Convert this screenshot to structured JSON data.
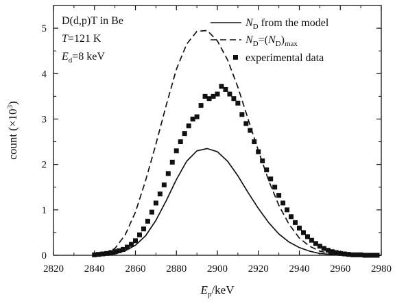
{
  "chart_data": {
    "type": "line",
    "annotations": {
      "reaction": "D(d,p)T in Be",
      "temperature": {
        "symbol": "T",
        "rest": "=121 K"
      },
      "energy": {
        "symbol": "E",
        "sub": "d",
        "rest": "=8 keV"
      }
    },
    "xlabel": {
      "symbol": "E",
      "sub": "p",
      "rest": "/keV"
    },
    "ylabel": {
      "main": "count",
      "unit_open": "(×10",
      "exp": "3",
      "unit_close": ")"
    },
    "xlim": [
      2820,
      2980
    ],
    "ylim": [
      0,
      5.5
    ],
    "x_ticks": [
      2820,
      2840,
      2860,
      2880,
      2900,
      2920,
      2940,
      2960,
      2980
    ],
    "y_ticks": [
      0,
      1,
      2,
      3,
      4,
      5
    ],
    "grid": false,
    "legend_position": "top-right",
    "legend": [
      {
        "kind": "solid",
        "symbol": "N",
        "sub": "D",
        "text": " from the model"
      },
      {
        "kind": "dashed",
        "symbol": "N",
        "sub": "D",
        "text": "=(",
        "symbol2": "N",
        "sub2": "D",
        "text2": ")",
        "sub3": "max"
      },
      {
        "kind": "squares",
        "text": "experimental data"
      }
    ],
    "series": [
      {
        "style": "solid",
        "x": [
          2840,
          2845,
          2850,
          2855,
          2860,
          2865,
          2870,
          2875,
          2880,
          2885,
          2890,
          2895,
          2900,
          2905,
          2910,
          2915,
          2920,
          2925,
          2930,
          2935,
          2940,
          2945,
          2950,
          2955,
          2960,
          2965,
          2970,
          2975,
          2980
        ],
        "y": [
          0.0,
          0.01,
          0.03,
          0.1,
          0.22,
          0.43,
          0.77,
          1.2,
          1.67,
          2.07,
          2.3,
          2.35,
          2.28,
          2.07,
          1.75,
          1.38,
          1.03,
          0.72,
          0.47,
          0.29,
          0.17,
          0.09,
          0.04,
          0.02,
          0.01,
          0.0,
          0.0,
          0.0,
          0.0
        ]
      },
      {
        "style": "dashed",
        "x": [
          2840,
          2845,
          2850,
          2855,
          2860,
          2865,
          2870,
          2875,
          2880,
          2885,
          2890,
          2895,
          2900,
          2905,
          2910,
          2915,
          2920,
          2925,
          2930,
          2935,
          2940,
          2945,
          2950,
          2955,
          2960,
          2965,
          2970,
          2975,
          2980
        ],
        "y": [
          0.01,
          0.04,
          0.15,
          0.45,
          0.95,
          1.65,
          2.45,
          3.3,
          4.1,
          4.65,
          4.93,
          4.95,
          4.72,
          4.3,
          3.7,
          3.0,
          2.3,
          1.65,
          1.1,
          0.68,
          0.38,
          0.2,
          0.09,
          0.04,
          0.02,
          0.01,
          0.0,
          0.0,
          0.0
        ]
      },
      {
        "style": "squares",
        "x": [
          2840,
          2842,
          2844,
          2846,
          2848,
          2850,
          2852,
          2854,
          2856,
          2858,
          2860,
          2862,
          2864,
          2866,
          2868,
          2870,
          2872,
          2874,
          2876,
          2878,
          2880,
          2882,
          2884,
          2886,
          2888,
          2890,
          2892,
          2894,
          2896,
          2898,
          2900,
          2902,
          2904,
          2906,
          2908,
          2910,
          2912,
          2914,
          2916,
          2918,
          2920,
          2922,
          2924,
          2926,
          2928,
          2930,
          2932,
          2934,
          2936,
          2938,
          2940,
          2942,
          2944,
          2946,
          2948,
          2950,
          2952,
          2954,
          2956,
          2958,
          2960,
          2962,
          2964,
          2966,
          2968,
          2970,
          2972,
          2974,
          2976,
          2978
        ],
        "y": [
          0.01,
          0.02,
          0.03,
          0.04,
          0.06,
          0.08,
          0.1,
          0.13,
          0.18,
          0.24,
          0.32,
          0.45,
          0.58,
          0.75,
          0.95,
          1.15,
          1.35,
          1.55,
          1.8,
          2.05,
          2.3,
          2.5,
          2.68,
          2.85,
          3.0,
          3.05,
          3.3,
          3.5,
          3.45,
          3.5,
          3.55,
          3.72,
          3.65,
          3.55,
          3.45,
          3.35,
          3.1,
          2.9,
          2.75,
          2.5,
          2.28,
          2.08,
          1.88,
          1.68,
          1.5,
          1.32,
          1.15,
          1.0,
          0.85,
          0.72,
          0.6,
          0.5,
          0.41,
          0.33,
          0.26,
          0.2,
          0.15,
          0.11,
          0.08,
          0.06,
          0.04,
          0.03,
          0.02,
          0.01,
          0.01,
          0.01,
          0.0,
          0.0,
          0.0,
          0.0
        ]
      }
    ]
  }
}
